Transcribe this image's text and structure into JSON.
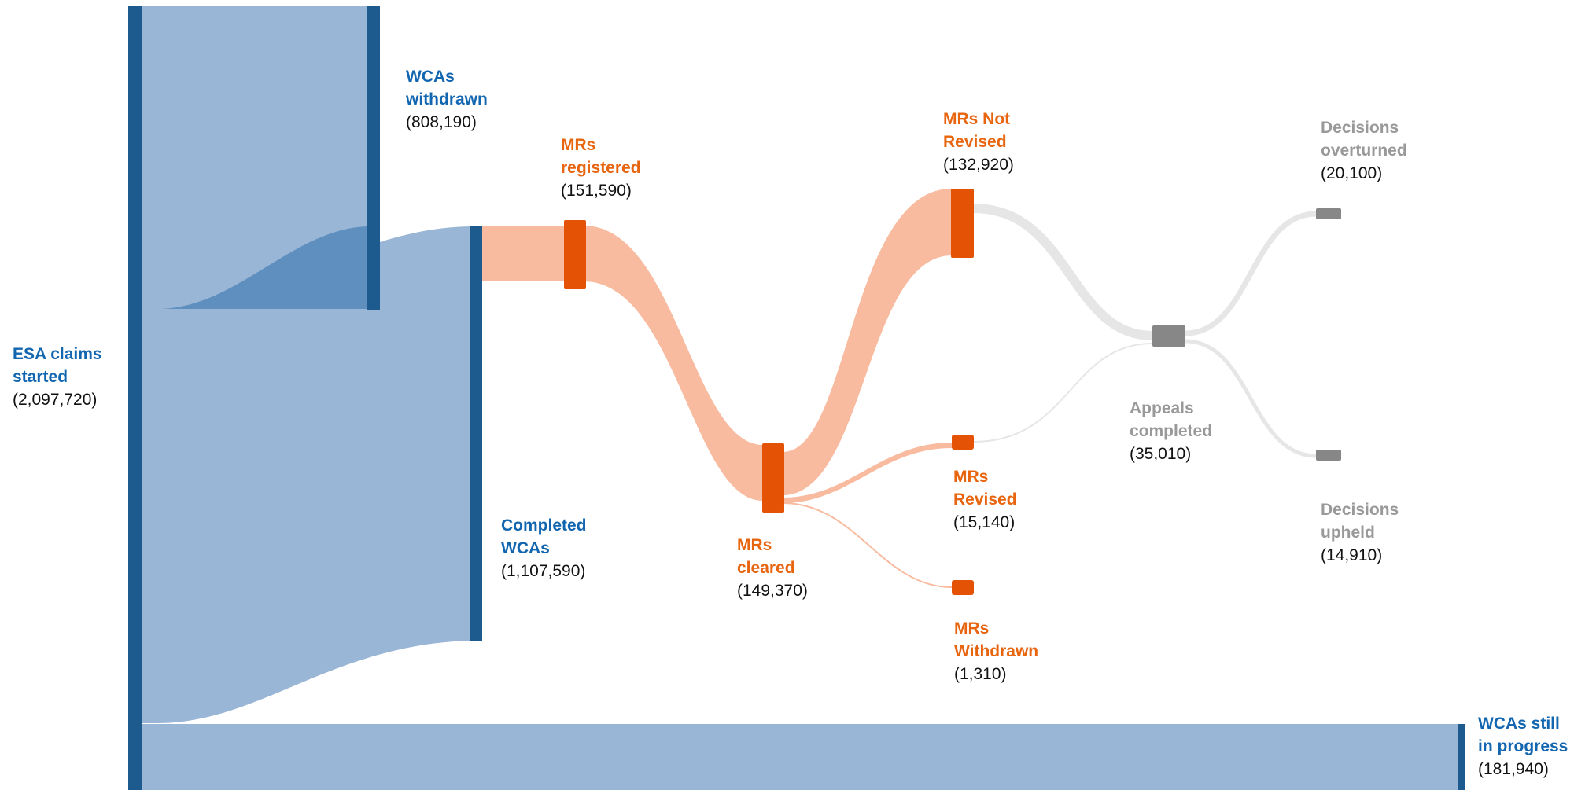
{
  "colors": {
    "blue_node": "#1d5a8e",
    "blue_flow": "#9ab6d6",
    "blue_flow_dark": "#5f8fbf",
    "blue_text": "#1266b0",
    "orange_node": "#e35205",
    "orange_flow": "#f8bb9f",
    "orange_text": "#e8650f",
    "grey_node": "#878787",
    "grey_flow": "#e6e6e6",
    "grey_text": "#999999"
  },
  "nodes": {
    "esa_claims_started": {
      "title_lines": [
        "ESA claims",
        "started"
      ],
      "value": "(2,097,720)"
    },
    "wcas_withdrawn": {
      "title_lines": [
        "WCAs",
        "withdrawn"
      ],
      "value": "(808,190)"
    },
    "completed_wcas": {
      "title_lines": [
        "Completed",
        "WCAs"
      ],
      "value": "(1,107,590)"
    },
    "wcas_still_in_progress": {
      "title_lines": [
        "WCAs still",
        "in progress"
      ],
      "value": "(181,940)"
    },
    "mrs_registered": {
      "title_lines": [
        "MRs",
        "registered"
      ],
      "value": "(151,590)"
    },
    "mrs_cleared": {
      "title_lines": [
        "MRs",
        "cleared"
      ],
      "value": "(149,370)"
    },
    "mrs_not_revised": {
      "title_lines": [
        "MRs Not",
        "Revised"
      ],
      "value": "(132,920)"
    },
    "mrs_revised": {
      "title_lines": [
        "MRs",
        "Revised"
      ],
      "value": "(15,140)"
    },
    "mrs_withdrawn": {
      "title_lines": [
        "MRs",
        "Withdrawn"
      ],
      "value": "(1,310)"
    },
    "appeals_completed": {
      "title_lines": [
        "Appeals",
        "completed"
      ],
      "value": "(35,010)"
    },
    "decisions_overturned": {
      "title_lines": [
        "Decisions",
        "overturned"
      ],
      "value": "(20,100)"
    },
    "decisions_upheld": {
      "title_lines": [
        "Decisions",
        "upheld"
      ],
      "value": "(14,910)"
    }
  },
  "links": [
    {
      "from": "esa_claims_started",
      "to": "wcas_withdrawn",
      "value": 808190
    },
    {
      "from": "esa_claims_started",
      "to": "completed_wcas",
      "value": 1107590
    },
    {
      "from": "esa_claims_started",
      "to": "wcas_still_in_progress",
      "value": 181940
    },
    {
      "from": "wcas_withdrawn",
      "to": "completed_wcas",
      "value": null
    },
    {
      "from": "completed_wcas",
      "to": "mrs_registered",
      "value": 151590
    },
    {
      "from": "mrs_registered",
      "to": "mrs_cleared",
      "value": 149370
    },
    {
      "from": "mrs_cleared",
      "to": "mrs_not_revised",
      "value": 132920
    },
    {
      "from": "mrs_cleared",
      "to": "mrs_revised",
      "value": 15140
    },
    {
      "from": "mrs_cleared",
      "to": "mrs_withdrawn",
      "value": 1310
    },
    {
      "from": "mrs_not_revised",
      "to": "appeals_completed",
      "value": null
    },
    {
      "from": "mrs_revised",
      "to": "appeals_completed",
      "value": null
    },
    {
      "from": "appeals_completed",
      "to": "decisions_overturned",
      "value": 20100
    },
    {
      "from": "appeals_completed",
      "to": "decisions_upheld",
      "value": 14910
    }
  ]
}
